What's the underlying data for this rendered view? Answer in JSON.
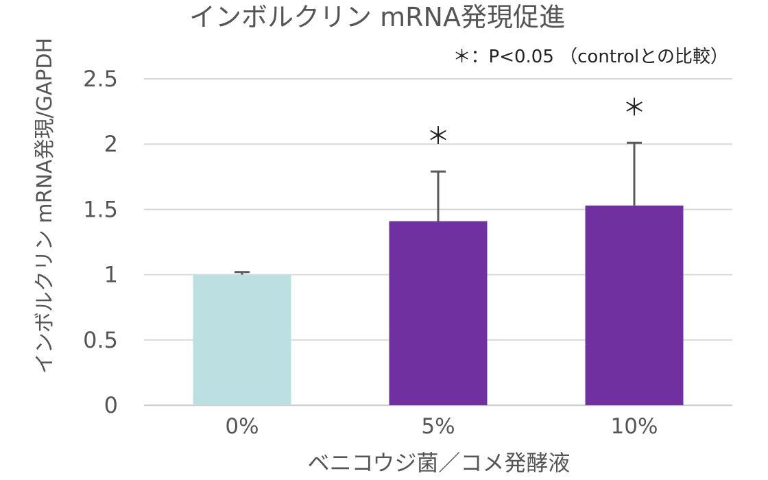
{
  "chart_data": {
    "type": "bar",
    "title": "インボルクリン mRNA発現促進",
    "annotation": "＊：P<0.05 （controlとの比較）",
    "xlabel": "ベニコウジ菌／コメ発酵液",
    "ylabel": "インボルクリン mRNA発現/GAPDH",
    "categories": [
      "0%",
      "5%",
      "10%"
    ],
    "values": [
      1.0,
      1.41,
      1.53
    ],
    "errors": [
      0.02,
      0.38,
      0.48
    ],
    "significance": [
      "",
      "＊",
      "＊"
    ],
    "bar_colors": [
      "#bcdfe2",
      "#7030a0",
      "#7030a0"
    ],
    "ylim": [
      0,
      2.5
    ],
    "yticks": [
      "0",
      "0.5",
      "1",
      "1.5",
      "2",
      "2.5"
    ],
    "ytick_values": [
      0,
      0.5,
      1,
      1.5,
      2,
      2.5
    ],
    "grid": true,
    "legend": "none"
  }
}
